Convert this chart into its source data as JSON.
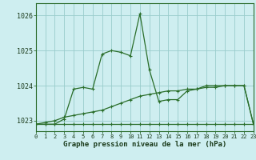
{
  "title": "Graphe pression niveau de la mer (hPa)",
  "x_labels": [
    "0",
    "1",
    "2",
    "3",
    "4",
    "5",
    "6",
    "7",
    "8",
    "9",
    "10",
    "11",
    "12",
    "13",
    "14",
    "15",
    "16",
    "17",
    "18",
    "19",
    "20",
    "21",
    "22",
    "23"
  ],
  "xlim": [
    0,
    23
  ],
  "ylim": [
    1022.7,
    1026.35
  ],
  "yticks": [
    1023,
    1024,
    1025,
    1026
  ],
  "background_color": "#ceeef0",
  "grid_color": "#99cccc",
  "line_color": "#2a6e2a",
  "series": {
    "line_flat": [
      1022.9,
      1022.9,
      1022.9,
      1022.9,
      1022.9,
      1022.9,
      1022.9,
      1022.9,
      1022.9,
      1022.9,
      1022.9,
      1022.9,
      1022.9,
      1022.9,
      1022.9,
      1022.9,
      1022.9,
      1022.9,
      1022.9,
      1022.9,
      1022.9,
      1022.9,
      1022.9,
      1022.9
    ],
    "line_diag": [
      1022.9,
      1022.95,
      1023.0,
      1023.1,
      1023.15,
      1023.2,
      1023.25,
      1023.3,
      1023.4,
      1023.5,
      1023.6,
      1023.7,
      1023.75,
      1023.8,
      1023.85,
      1023.85,
      1023.9,
      1023.9,
      1023.95,
      1023.95,
      1024.0,
      1024.0,
      1024.0,
      1022.9
    ],
    "line_peak": [
      1022.9,
      1022.9,
      1022.9,
      1023.05,
      1023.9,
      1023.95,
      1023.9,
      1024.9,
      1025.0,
      1024.95,
      1024.85,
      1026.05,
      1024.45,
      1023.55,
      1023.6,
      1023.6,
      1023.85,
      1023.9,
      1024.0,
      1024.0,
      1024.0,
      1024.0,
      1024.0,
      1022.9
    ]
  }
}
